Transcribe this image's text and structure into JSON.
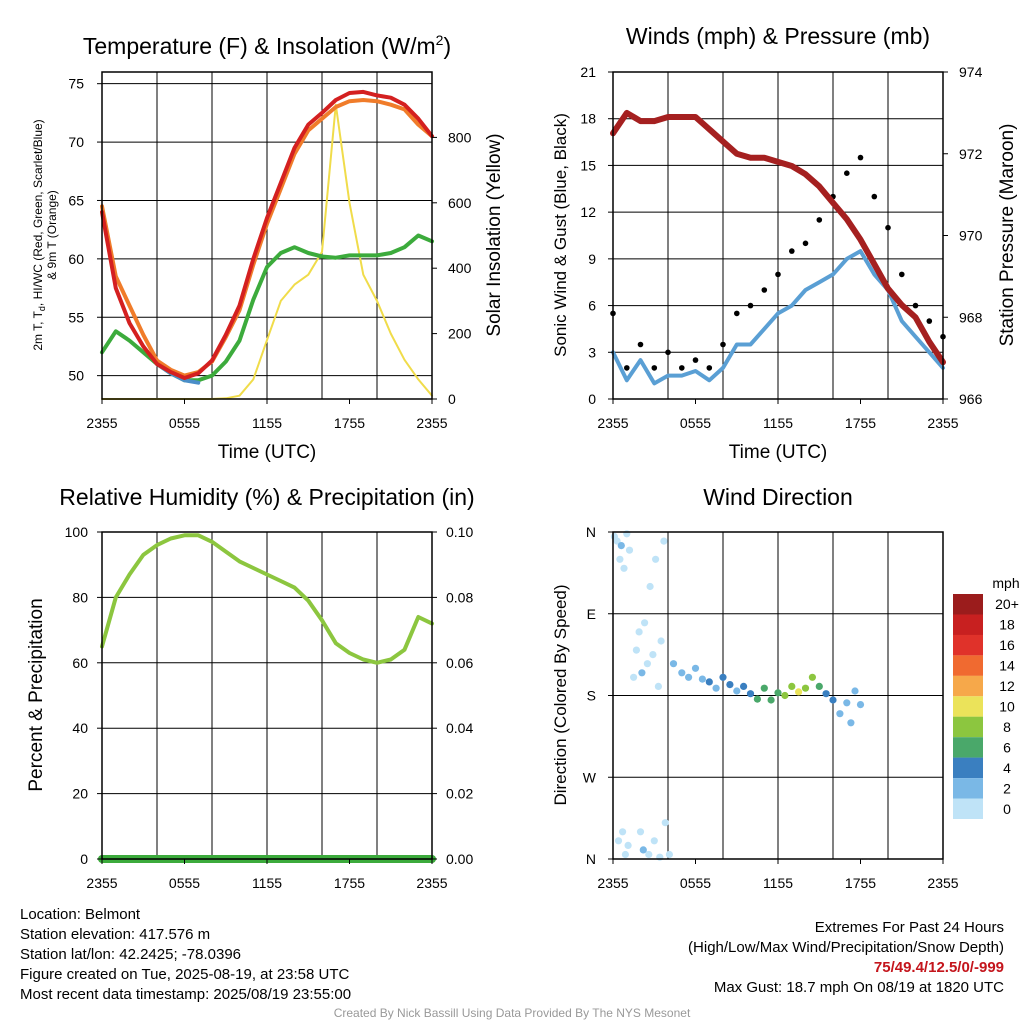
{
  "chart_data": [
    {
      "type": "line",
      "title_main": "Temperature (F) & Insolation (W/m",
      "title_sup": "2",
      "title_end": ")",
      "xlabel": "Time (UTC)",
      "ylabel_line1": "2m T, T",
      "ylabel_sub": "d",
      "ylabel_line1_end": ", HI/WC (Red, Green, Scarlet/Blue)",
      "ylabel_line2": "& 9m T (Orange)",
      "y2label": "Solar Insolation (Yellow)",
      "x_ticks": [
        "2355",
        "0555",
        "1155",
        "1755",
        "2355"
      ],
      "ylim": [
        48,
        76
      ],
      "y_ticks": [
        50,
        55,
        60,
        65,
        70,
        75
      ],
      "y2lim": [
        0,
        1000
      ],
      "y2_ticks": [
        0,
        200,
        400,
        600,
        800
      ],
      "x_hours": [
        0,
        1,
        2,
        3,
        4,
        5,
        6,
        7,
        8,
        9,
        10,
        11,
        12,
        13,
        14,
        15,
        16,
        17,
        18,
        19,
        20,
        21,
        22,
        23,
        24
      ],
      "series": [
        {
          "color": "#d42020",
          "values": [
            64,
            57.5,
            54.5,
            52.5,
            51,
            50.3,
            49.8,
            50.2,
            51.3,
            53.5,
            56,
            60,
            63.5,
            66.5,
            69.5,
            71.5,
            72.5,
            73.6,
            74.2,
            74.3,
            74,
            73.8,
            73.2,
            72,
            70.5
          ]
        },
        {
          "color": "#f07c2a",
          "values": [
            64.5,
            58.5,
            56,
            53.5,
            51.3,
            50.5,
            50,
            50.3,
            51.2,
            53.3,
            55.6,
            59.5,
            63,
            66,
            69,
            71,
            72,
            73,
            73.5,
            73.6,
            73.5,
            73.2,
            72.8,
            71.5,
            70.5
          ]
        },
        {
          "color": "#3cab3c",
          "values": [
            52,
            53.8,
            53,
            52,
            51,
            50.2,
            49.6,
            49.6,
            50,
            51.2,
            53,
            56.5,
            59.3,
            60.5,
            61,
            60.5,
            60.2,
            60.1,
            60.3,
            60.3,
            60.3,
            60.5,
            61,
            62,
            61.5
          ]
        },
        {
          "color": "#4a8ec8",
          "values": [
            null,
            null,
            null,
            null,
            51,
            50.2,
            49.6,
            49.4,
            null,
            null,
            null,
            null,
            null,
            null,
            null,
            null,
            null,
            null,
            null,
            null,
            null,
            null,
            null,
            null,
            null
          ]
        },
        {
          "color": "#f0dc4a",
          "axis": "y2",
          "values": [
            0,
            0,
            0,
            0,
            0,
            0,
            0,
            0,
            0,
            2,
            10,
            60,
            180,
            300,
            350,
            380,
            450,
            900,
            600,
            380,
            300,
            200,
            120,
            60,
            10
          ]
        }
      ]
    },
    {
      "type": "line",
      "title": "Winds (mph) & Pressure (mb)",
      "xlabel": "Time (UTC)",
      "ylabel": "Sonic Wind & Gust (Blue, Black)",
      "y2label": "Station Pressure (Maroon)",
      "x_ticks": [
        "2355",
        "0555",
        "1155",
        "1755",
        "2355"
      ],
      "ylim": [
        0,
        21
      ],
      "y_ticks": [
        0,
        3,
        6,
        9,
        12,
        15,
        18,
        21
      ],
      "y2lim": [
        966,
        974
      ],
      "y2_ticks": [
        966,
        968,
        970,
        972,
        974
      ],
      "x_hours": [
        0,
        1,
        2,
        3,
        4,
        5,
        6,
        7,
        8,
        9,
        10,
        11,
        12,
        13,
        14,
        15,
        16,
        17,
        18,
        19,
        20,
        21,
        22,
        23,
        24
      ],
      "series": [
        {
          "color": "#5a9fd4",
          "values": [
            3,
            1.2,
            2.5,
            1,
            1.5,
            1.5,
            1.8,
            1.2,
            2,
            3.5,
            3.5,
            4.5,
            5.5,
            6,
            7,
            7.5,
            8,
            9,
            9.5,
            8,
            7,
            5,
            4,
            3,
            2
          ]
        },
        {
          "color": "#000000",
          "kind": "dots",
          "values": [
            5.5,
            2,
            3.5,
            2,
            3,
            2,
            2.5,
            2,
            3.5,
            5.5,
            6,
            7,
            8,
            9.5,
            10,
            11.5,
            13,
            14.5,
            15.5,
            13,
            11,
            8,
            6,
            5,
            4
          ]
        },
        {
          "color": "#a52020",
          "axis": "y2",
          "values": [
            972.5,
            973,
            972.8,
            972.8,
            972.9,
            972.9,
            972.9,
            972.6,
            972.3,
            972,
            971.9,
            971.9,
            971.8,
            971.7,
            971.5,
            971.2,
            970.8,
            970.4,
            969.9,
            969.3,
            968.7,
            968.3,
            968,
            967.4,
            966.9
          ]
        }
      ]
    },
    {
      "type": "line",
      "title": "Relative Humidity (%) & Precipitation (in)",
      "ylabel": "Percent & Precipitation",
      "x_ticks": [
        "2355",
        "0555",
        "1155",
        "1755",
        "2355"
      ],
      "ylim": [
        0,
        100
      ],
      "y_ticks": [
        0,
        20,
        40,
        60,
        80,
        100
      ],
      "y2lim": [
        0,
        0.1
      ],
      "y2_ticks": [
        "0.00",
        "0.02",
        "0.04",
        "0.06",
        "0.08",
        "0.10"
      ],
      "x_hours": [
        0,
        1,
        2,
        3,
        4,
        5,
        6,
        7,
        8,
        9,
        10,
        11,
        12,
        13,
        14,
        15,
        16,
        17,
        18,
        19,
        20,
        21,
        22,
        23,
        24
      ],
      "series": [
        {
          "color": "#8cc63f",
          "values": [
            65,
            80,
            87,
            93,
            96,
            98,
            99,
            99,
            97,
            94,
            91,
            89,
            87,
            85,
            83,
            79,
            73,
            66,
            63,
            61,
            60,
            61,
            64,
            74,
            72
          ]
        },
        {
          "color": "#3cab3c",
          "axis": "y2",
          "values": [
            0,
            0,
            0,
            0,
            0,
            0,
            0,
            0,
            0,
            0,
            0,
            0,
            0,
            0,
            0,
            0,
            0,
            0,
            0,
            0,
            0,
            0,
            0,
            0,
            0
          ]
        }
      ]
    },
    {
      "type": "scatter",
      "title": "Wind Direction",
      "ylabel": "Direction (Colored By Speed)",
      "x_ticks": [
        "2355",
        "0555",
        "1155",
        "1755",
        "2355"
      ],
      "y_ticks": [
        "N",
        "E",
        "S",
        "W",
        "N"
      ],
      "ylim": [
        0,
        360
      ],
      "colorbar_title": "mph",
      "colorbar_labels": [
        "20+",
        "18",
        "16",
        "14",
        "12",
        "10",
        "8",
        "6",
        "4",
        "2",
        "0"
      ],
      "colorbar_colors": [
        "#9b1c1c",
        "#c82020",
        "#e0322a",
        "#f06a30",
        "#f6a84a",
        "#ebe35a",
        "#8cc63f",
        "#4aa86a",
        "#3a7fc0",
        "#7ab8e6",
        "#bfe3f7"
      ],
      "points": [
        [
          0.1,
          355,
          1
        ],
        [
          0.3,
          350,
          1.5
        ],
        [
          0.5,
          330,
          1
        ],
        [
          0.6,
          345,
          2
        ],
        [
          0.8,
          320,
          1
        ],
        [
          1.0,
          358,
          1
        ],
        [
          1.2,
          340,
          0.5
        ],
        [
          0.9,
          5,
          1
        ],
        [
          1.1,
          15,
          0.5
        ],
        [
          0.7,
          30,
          1
        ],
        [
          0.4,
          20,
          1
        ],
        [
          1.5,
          200,
          1
        ],
        [
          1.7,
          230,
          1
        ],
        [
          1.9,
          250,
          1.5
        ],
        [
          2.1,
          205,
          2
        ],
        [
          2.3,
          260,
          1
        ],
        [
          2.5,
          215,
          1
        ],
        [
          2.7,
          300,
          1
        ],
        [
          2.9,
          225,
          1
        ],
        [
          3.1,
          330,
          1
        ],
        [
          3.3,
          190,
          1
        ],
        [
          3.5,
          240,
          1
        ],
        [
          3.7,
          350,
          1
        ],
        [
          2.0,
          30,
          1
        ],
        [
          2.2,
          10,
          2
        ],
        [
          2.6,
          5,
          1
        ],
        [
          3.0,
          20,
          1
        ],
        [
          3.4,
          2,
          1
        ],
        [
          3.8,
          40,
          1
        ],
        [
          4.1,
          5,
          1.5
        ],
        [
          4.4,
          215,
          3.5
        ],
        [
          5.0,
          205,
          3.5
        ],
        [
          5.5,
          200,
          3.5
        ],
        [
          6.0,
          210,
          3.5
        ],
        [
          6.5,
          198,
          3.5
        ],
        [
          7.0,
          195,
          4
        ],
        [
          7.5,
          188,
          3.5
        ],
        [
          8.0,
          200,
          4
        ],
        [
          8.5,
          192,
          4
        ],
        [
          9.0,
          185,
          3.5
        ],
        [
          9.5,
          190,
          5
        ],
        [
          10.0,
          182,
          5.5
        ],
        [
          10.5,
          176,
          6
        ],
        [
          11.0,
          188,
          6.5
        ],
        [
          11.5,
          175,
          6
        ],
        [
          12.0,
          183,
          7
        ],
        [
          12.5,
          180,
          8
        ],
        [
          13.0,
          190,
          9
        ],
        [
          13.5,
          184,
          10
        ],
        [
          14.0,
          188,
          9
        ],
        [
          14.5,
          200,
          8
        ],
        [
          15.0,
          190,
          6
        ],
        [
          15.5,
          182,
          4
        ],
        [
          16.0,
          175,
          4
        ],
        [
          16.5,
          160,
          2
        ],
        [
          17.0,
          172,
          2
        ],
        [
          17.3,
          150,
          2
        ],
        [
          17.6,
          185,
          3
        ],
        [
          18.0,
          170,
          2
        ]
      ]
    }
  ],
  "info": {
    "location": "Location: Belmont",
    "elevation": "Station elevation: 417.576 m",
    "latlon": "Station lat/lon: 42.2425; -78.0396",
    "created": "Figure created on Tue, 2025-08-19, at 23:58 UTC",
    "recent": "Most recent data timestamp: 2025/08/19 23:55:00"
  },
  "extremes": {
    "title": "Extremes For Past 24 Hours",
    "legend": "(High/Low/Max Wind/Precipitation/Snow Depth)",
    "values": "75/49.4/12.5/0/-999",
    "gust": "Max Gust: 18.7 mph On 08/19 at 1820 UTC"
  },
  "credit": "Created By Nick Bassill Using Data Provided By The NYS Mesonet"
}
